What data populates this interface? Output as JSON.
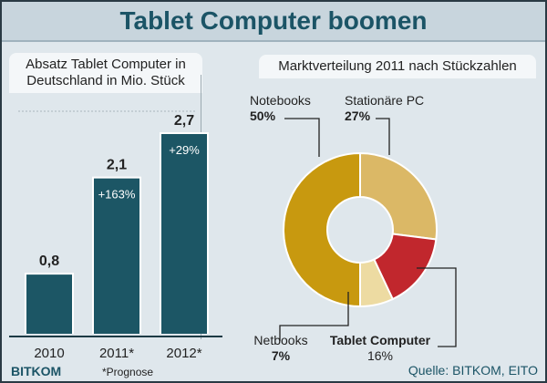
{
  "title": "Tablet Computer boomen",
  "chart_data": [
    {
      "type": "bar",
      "title": "Absatz Tablet Computer in Deutschland in Mio. Stück",
      "categories": [
        "2010",
        "2011*",
        "2012*"
      ],
      "values": [
        0.8,
        2.1,
        2.7
      ],
      "value_labels": [
        "0,8",
        "2,1",
        "2,7"
      ],
      "growth_labels": [
        "",
        "+163%",
        "+29%"
      ],
      "color": "#1c5665",
      "ylim": [
        0,
        2.7
      ]
    },
    {
      "type": "pie",
      "title": "Marktverteilung 2011 nach Stückzahlen",
      "donut": true,
      "slices": [
        {
          "name": "Stationäre PC",
          "value": 27,
          "label": "27%",
          "color": "#dbb866"
        },
        {
          "name": "Tablet Computer",
          "value": 16,
          "label": "16%",
          "color": "#c1272d"
        },
        {
          "name": "Netbooks",
          "value": 7,
          "label": "7%",
          "color": "#eddba2"
        },
        {
          "name": "Notebooks",
          "value": 50,
          "label": "50%",
          "color": "#c8990f"
        }
      ]
    }
  ],
  "footnote": "*Prognose",
  "logo": "BITKOM",
  "source": "Quelle: BITKOM, EITO"
}
